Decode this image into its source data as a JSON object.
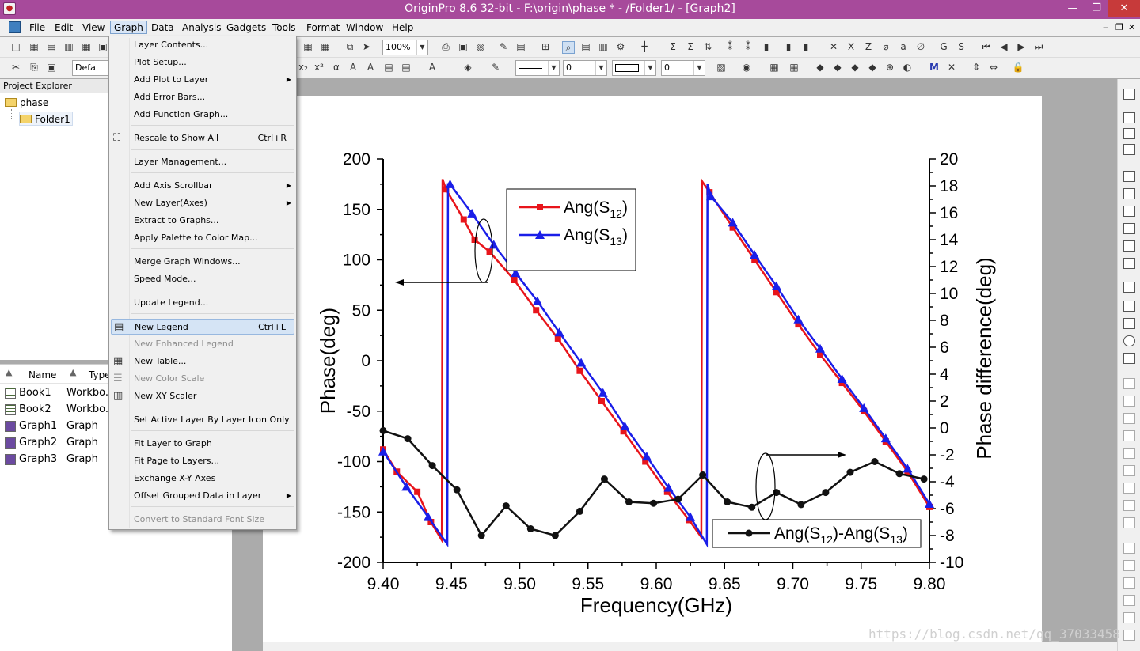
{
  "window": {
    "title": "OriginPro 8.6 32-bit - F:\\origin\\phase * - /Folder1/ - [Graph2]",
    "minimize": "—",
    "restore": "❐",
    "close": "✕"
  },
  "menubar": {
    "items": [
      "File",
      "Edit",
      "View",
      "Graph",
      "Data",
      "Analysis",
      "Gadgets",
      "Tools",
      "Format",
      "Window",
      "Help"
    ],
    "mdi_min": "‒",
    "mdi_restore": "❐",
    "mdi_close": "✕"
  },
  "toolbar": {
    "zoom": "100%",
    "font": "Defa",
    "line_width": "0",
    "pattern_value": "0"
  },
  "project_explorer": {
    "title": "Project Explorer",
    "tree": [
      {
        "label": "phase"
      },
      {
        "label": "Folder1"
      }
    ],
    "columns": [
      "Name",
      "Type"
    ],
    "rows": [
      {
        "name": "Book1",
        "type": "Workbo...",
        "icon": "workbook-icon"
      },
      {
        "name": "Book2",
        "type": "Workbo...",
        "icon": "workbook-icon"
      },
      {
        "name": "Graph1",
        "type": "Graph",
        "icon": "graph-icon"
      },
      {
        "name": "Graph2",
        "type": "Graph",
        "icon": "graph-icon"
      },
      {
        "name": "Graph3",
        "type": "Graph",
        "icon": "graph-icon"
      }
    ]
  },
  "graph_menu": {
    "items": [
      {
        "label": "Layer Contents..."
      },
      {
        "label": "Plot Setup..."
      },
      {
        "label": "Add Plot to Layer",
        "submenu": "▶"
      },
      {
        "label": "Add Error Bars..."
      },
      {
        "label": "Add Function Graph..."
      },
      {
        "label": "Rescale to Show All",
        "shortcut": "Ctrl+R",
        "icon": "rescale-icon"
      },
      {
        "label": "Layer Management..."
      },
      {
        "label": "Add Axis Scrollbar",
        "submenu": "▶"
      },
      {
        "label": "New Layer(Axes)",
        "submenu": "▶"
      },
      {
        "label": "Extract to Graphs..."
      },
      {
        "label": "Apply Palette to Color Map..."
      },
      {
        "label": "Merge Graph Windows..."
      },
      {
        "label": "Speed Mode..."
      },
      {
        "label": "Update Legend..."
      },
      {
        "label": "New Legend",
        "shortcut": "Ctrl+L",
        "icon": "legend-icon",
        "highlighted": true
      },
      {
        "label": "New Enhanced Legend",
        "disabled": true
      },
      {
        "label": "New Table...",
        "icon": "table-icon"
      },
      {
        "label": "New Color Scale",
        "disabled": true,
        "icon": "color-scale-icon"
      },
      {
        "label": "New XY Scaler",
        "icon": "xy-scaler-icon"
      },
      {
        "label": "Set Active Layer By Layer Icon Only"
      },
      {
        "label": "Fit Layer to Graph"
      },
      {
        "label": "Fit Page to Layers..."
      },
      {
        "label": "Exchange X-Y Axes"
      },
      {
        "label": "Offset Grouped Data in Layer",
        "submenu": "▶"
      },
      {
        "label": "Convert to Standard Font Size",
        "disabled": true
      }
    ]
  },
  "chart_data": {
    "type": "line",
    "xlabel": "Frequency(GHz)",
    "ylabel": "Phase(deg)",
    "y2label": "Phase difference(deg)",
    "xlim": [
      9.4,
      9.8
    ],
    "ylim": [
      -200,
      200
    ],
    "y2lim": [
      -10,
      20
    ],
    "xticks": [
      "9.40",
      "9.45",
      "9.50",
      "9.55",
      "9.60",
      "9.65",
      "9.70",
      "9.75",
      "9.80"
    ],
    "yticks": [
      "200",
      "150",
      "100",
      "50",
      "0",
      "-50",
      "-100",
      "-150",
      "-200"
    ],
    "y2ticks": [
      "20",
      "18",
      "16",
      "14",
      "12",
      "10",
      "8",
      "6",
      "4",
      "2",
      "0",
      "-2",
      "-4",
      "-6",
      "-8",
      "-10"
    ],
    "series": [
      {
        "name": "Ang(S",
        "sub": "12",
        "suffix": ")",
        "color": "#e8151b",
        "marker": "square",
        "axis": "left",
        "x": [
          9.4,
          9.41,
          9.425,
          9.435,
          9.443,
          9.4435,
          9.446,
          9.459,
          9.467,
          9.478,
          9.496,
          9.512,
          9.528,
          9.544,
          9.56,
          9.576,
          9.592,
          9.608,
          9.624,
          9.633,
          9.6335,
          9.639,
          9.656,
          9.672,
          9.688,
          9.704,
          9.72,
          9.736,
          9.752,
          9.768,
          9.784,
          9.8
        ],
        "y": [
          -88,
          -110,
          -130,
          -160,
          -178,
          180,
          170,
          140,
          120,
          108,
          80,
          50,
          22,
          -10,
          -40,
          -70,
          -100,
          -130,
          -158,
          -175,
          178,
          167,
          132,
          100,
          68,
          36,
          6,
          -22,
          -50,
          -80,
          -110,
          -145
        ]
      },
      {
        "name": "Ang(S",
        "sub": "13",
        "suffix": ")",
        "color": "#1a1ee8",
        "marker": "triangle",
        "axis": "left",
        "x": [
          9.4,
          9.417,
          9.433,
          9.447,
          9.4475,
          9.449,
          9.465,
          9.481,
          9.497,
          9.513,
          9.529,
          9.545,
          9.561,
          9.577,
          9.593,
          9.609,
          9.625,
          9.637,
          9.6375,
          9.64,
          9.656,
          9.672,
          9.688,
          9.704,
          9.72,
          9.736,
          9.752,
          9.768,
          9.784,
          9.8
        ],
        "y": [
          -90,
          -125,
          -155,
          -182,
          175,
          175,
          146,
          115,
          87,
          59,
          28,
          -2,
          -32,
          -65,
          -95,
          -126,
          -155,
          -182,
          175,
          163,
          137,
          105,
          74,
          41,
          12,
          -18,
          -47,
          -77,
          -107,
          -142
        ]
      },
      {
        "name": "Ang(S",
        "sub": "12",
        "suffix": ")-Ang(S",
        "sub2": "13",
        "suffix2": ")",
        "color": "#111111",
        "marker": "circle",
        "axis": "right",
        "x": [
          9.4,
          9.418,
          9.436,
          9.454,
          9.472,
          9.49,
          9.508,
          9.526,
          9.544,
          9.562,
          9.58,
          9.598,
          9.616,
          9.634,
          9.652,
          9.67,
          9.688,
          9.706,
          9.724,
          9.742,
          9.76,
          9.778,
          9.796
        ],
        "y": [
          -0.2,
          -0.8,
          -2.8,
          -4.6,
          -8.0,
          -5.8,
          -7.5,
          -8.0,
          -6.2,
          -3.8,
          -5.5,
          -5.6,
          -5.3,
          -3.5,
          -5.5,
          -5.9,
          -4.8,
          -5.7,
          -4.8,
          -3.3,
          -2.5,
          -3.4,
          -3.8
        ]
      }
    ],
    "legend1_position": "top-center",
    "legend2_position": "bottom-right",
    "annotations": [
      {
        "type": "ellipse-arrow",
        "points_to": "left axis"
      },
      {
        "type": "ellipse-arrow",
        "points_to": "right axis"
      }
    ]
  },
  "watermark": "https://blog.csdn.net/qq_37033458"
}
